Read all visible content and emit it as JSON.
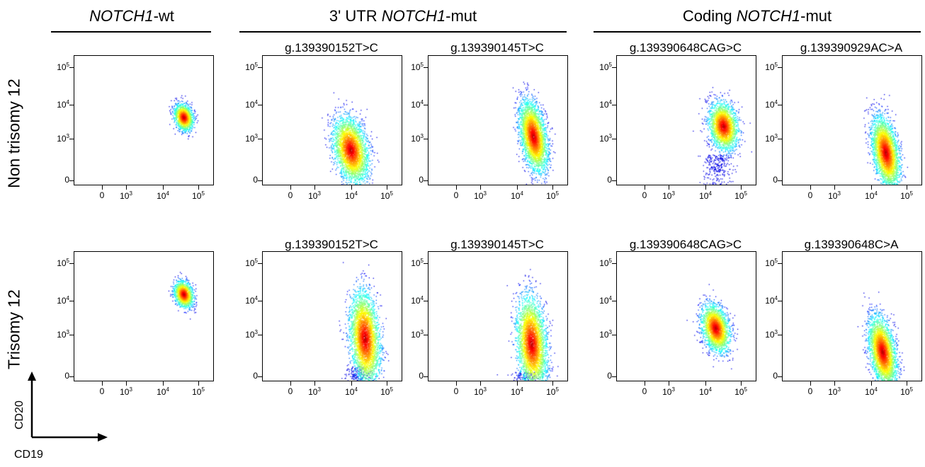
{
  "groups": [
    {
      "pre": "",
      "italic": "NOTCH1",
      "post": "-wt"
    },
    {
      "pre": "3' UTR ",
      "italic": "NOTCH1",
      "post": "-mut"
    },
    {
      "pre": "Coding ",
      "italic": "NOTCH1",
      "post": "-mut"
    }
  ],
  "rows": [
    "Non trisomy 12",
    "Trisomy 12"
  ],
  "axes": {
    "x": "CD19",
    "y": "CD20"
  },
  "ticks": {
    "y": [
      "10⁵",
      "10⁴",
      "10³",
      "0"
    ],
    "x": [
      "0",
      "10³",
      "10⁴",
      "10⁵"
    ]
  },
  "chart_data": [
    {
      "type": "scatter",
      "row": "Non trisomy 12",
      "title": "",
      "population": {
        "cd19_center": 12000,
        "cd20_center": 5500,
        "spread": "tight"
      }
    },
    {
      "type": "scatter",
      "row": "Non trisomy 12",
      "title": "g.139390152T>C",
      "population": {
        "cd19_center": 3000,
        "cd20_center": 600,
        "spread": "broad"
      }
    },
    {
      "type": "scatter",
      "row": "Non trisomy 12",
      "title": "g.139390145T>C",
      "population": {
        "cd19_center": 9000,
        "cd20_center": 1500,
        "spread": "elongated"
      }
    },
    {
      "type": "scatter",
      "row": "Non trisomy 12",
      "title": "g.139390648CAG>C",
      "population": {
        "cd19_center": 10000,
        "cd20_center": 3000,
        "spread": "tail"
      }
    },
    {
      "type": "scatter",
      "row": "Non trisomy 12",
      "title": "g.139390929AC>A",
      "population": {
        "cd19_center": 8000,
        "cd20_center": 500,
        "spread": "elongated"
      }
    },
    {
      "type": "scatter",
      "row": "Trisomy 12",
      "title": "",
      "population": {
        "cd19_center": 12000,
        "cd20_center": 20000,
        "spread": "tight"
      }
    },
    {
      "type": "scatter",
      "row": "Trisomy 12",
      "title": "g.139390152T>C",
      "population": {
        "cd19_center": 7500,
        "cd20_center": 1000,
        "spread": "tall"
      }
    },
    {
      "type": "scatter",
      "row": "Trisomy 12",
      "title": "g.139390145T>C",
      "population": {
        "cd19_center": 8000,
        "cd20_center": 700,
        "spread": "tall"
      }
    },
    {
      "type": "scatter",
      "row": "Trisomy 12",
      "title": "g.139390648CAG>C",
      "population": {
        "cd19_center": 6000,
        "cd20_center": 2000,
        "spread": "medium"
      }
    },
    {
      "type": "scatter",
      "row": "Trisomy 12",
      "title": "g.139390648C>A",
      "population": {
        "cd19_center": 6500,
        "cd20_center": 400,
        "spread": "elongated"
      }
    }
  ]
}
